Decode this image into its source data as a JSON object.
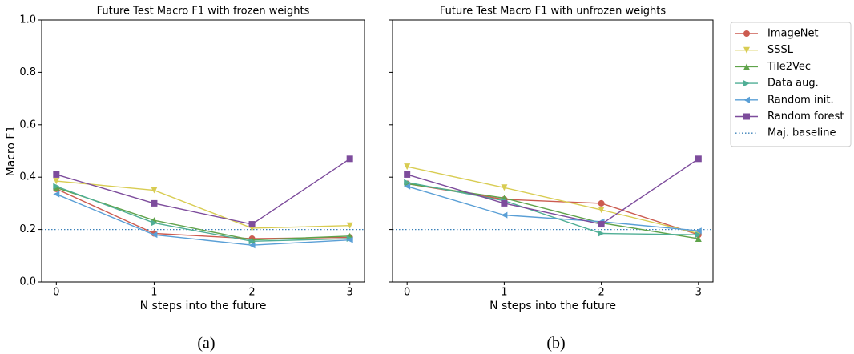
{
  "chart_data": [
    {
      "type": "line",
      "title": "Future Test Macro F1 with frozen weights",
      "xlabel": "N steps into the future",
      "ylabel": "Macro F1",
      "caption": "(a)",
      "x": [
        0,
        1,
        2,
        3
      ],
      "xlim": [
        -0.15,
        3.15
      ],
      "xticks": [
        0,
        1,
        2,
        3
      ],
      "ylim": [
        0,
        1
      ],
      "yticks": [
        {
          "value": 0,
          "label": "0.0"
        },
        0.2,
        0.4,
        0.6,
        0.8,
        {
          "value": 1,
          "label": "1.0"
        }
      ],
      "show_ytick_labels": true,
      "series": [
        {
          "color": "#cc5b50",
          "marker": "circle",
          "values": [
            0.355,
            0.185,
            0.165,
            0.17
          ]
        },
        {
          "color": "#d8cc52",
          "marker": "down",
          "values": [
            0.385,
            0.35,
            0.205,
            0.215
          ]
        },
        {
          "color": "#5fa34a",
          "marker": "up",
          "values": [
            0.36,
            0.235,
            0.16,
            0.175
          ]
        },
        {
          "color": "#4fae95",
          "marker": "right",
          "values": [
            0.365,
            0.225,
            0.155,
            0.165
          ]
        },
        {
          "color": "#5a9fd6",
          "marker": "left",
          "values": [
            0.335,
            0.18,
            0.14,
            0.16
          ]
        },
        {
          "color": "#7d4c9c",
          "marker": "square",
          "values": [
            0.41,
            0.3,
            0.22,
            0.47
          ]
        }
      ],
      "baseline": {
        "color": "#3a80b8",
        "value": 0.2
      }
    },
    {
      "type": "line",
      "title": "Future Test Macro F1 with unfrozen weights",
      "xlabel": "N steps into the future",
      "caption": "(b)",
      "x": [
        0,
        1,
        2,
        3
      ],
      "xlim": [
        -0.15,
        3.15
      ],
      "xticks": [
        0,
        1,
        2,
        3
      ],
      "ylim": [
        0,
        1
      ],
      "yticks": [
        0,
        0.2,
        0.4,
        0.6,
        0.8,
        1
      ],
      "show_ytick_labels": false,
      "series": [
        {
          "name": "ImageNet",
          "color": "#cc5b50",
          "marker": "circle",
          "values": [
            0.375,
            0.315,
            0.3,
            0.18
          ]
        },
        {
          "name": "SSSL",
          "color": "#d8cc52",
          "marker": "down",
          "values": [
            0.44,
            0.36,
            0.275,
            0.185
          ]
        },
        {
          "name": "Tile2Vec",
          "color": "#5fa34a",
          "marker": "up",
          "values": [
            0.375,
            0.32,
            0.225,
            0.165
          ]
        },
        {
          "name": "Data aug.",
          "color": "#4fae95",
          "marker": "right",
          "values": [
            0.38,
            0.31,
            0.185,
            0.18
          ]
        },
        {
          "name": "Random init.",
          "color": "#5a9fd6",
          "marker": "left",
          "values": [
            0.365,
            0.255,
            0.23,
            0.195
          ]
        },
        {
          "name": "Random forest",
          "color": "#7d4c9c",
          "marker": "square",
          "values": [
            0.41,
            0.3,
            0.22,
            0.47
          ]
        }
      ],
      "baseline": {
        "name": "Maj. baseline",
        "color": "#3a80b8",
        "value": 0.2
      },
      "legend": "outside-right"
    }
  ]
}
